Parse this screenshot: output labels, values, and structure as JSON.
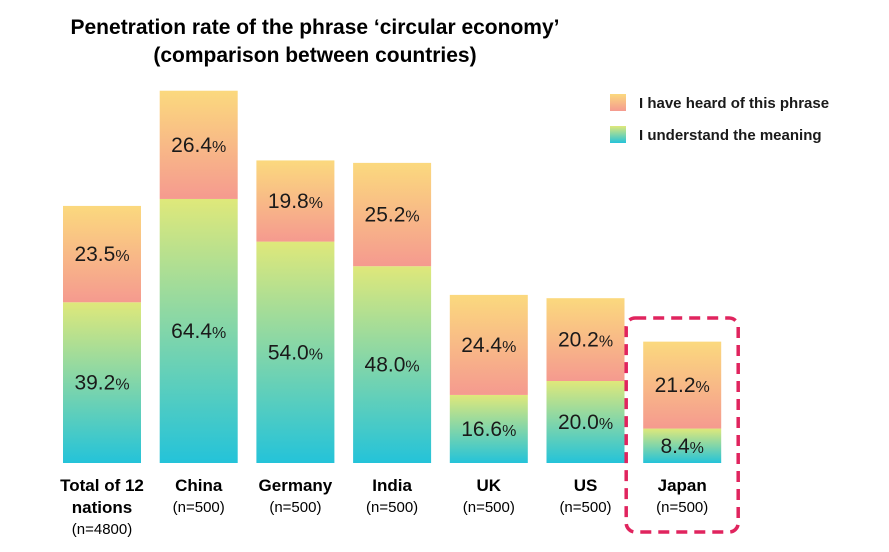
{
  "chart_data": {
    "type": "bar",
    "stacked": true,
    "title_lines": [
      "Penetration rate of the phrase ‘circular economy’",
      "(comparison between countries)"
    ],
    "categories": [
      {
        "name_lines": [
          "Total of 12",
          "nations"
        ],
        "n": "(n=4800)",
        "highlight": false
      },
      {
        "name_lines": [
          "China"
        ],
        "n": "(n=500)",
        "highlight": false
      },
      {
        "name_lines": [
          "Germany"
        ],
        "n": "(n=500)",
        "highlight": false
      },
      {
        "name_lines": [
          "India"
        ],
        "n": "(n=500)",
        "highlight": false
      },
      {
        "name_lines": [
          "UK"
        ],
        "n": "(n=500)",
        "highlight": false
      },
      {
        "name_lines": [
          "US"
        ],
        "n": "(n=500)",
        "highlight": false
      },
      {
        "name_lines": [
          "Japan"
        ],
        "n": "(n=500)",
        "highlight": true
      }
    ],
    "series": [
      {
        "name": "I understand the meaning",
        "values": [
          39.2,
          64.4,
          54.0,
          48.0,
          16.6,
          20.0,
          8.4
        ]
      },
      {
        "name": "I have heard of this phrase",
        "values": [
          23.5,
          26.4,
          19.8,
          25.2,
          24.4,
          20.2,
          21.2
        ]
      }
    ],
    "value_labels": [
      [
        "39.2",
        "64.4",
        "54.0",
        "48.0",
        "16.6",
        "20.0",
        "8.4"
      ],
      [
        "23.5",
        "26.4",
        "19.8",
        "25.2",
        "24.4",
        "20.2",
        "21.2"
      ]
    ],
    "unit": "%",
    "ylim": [
      0,
      100
    ],
    "legend_position": "top-right",
    "colors": {
      "understand_top": "#dfe87a",
      "understand_bottom": "#24c3d9",
      "heard_top": "#fbd97e",
      "heard_bottom": "#f59a8f",
      "highlight": "#e0245e"
    }
  }
}
